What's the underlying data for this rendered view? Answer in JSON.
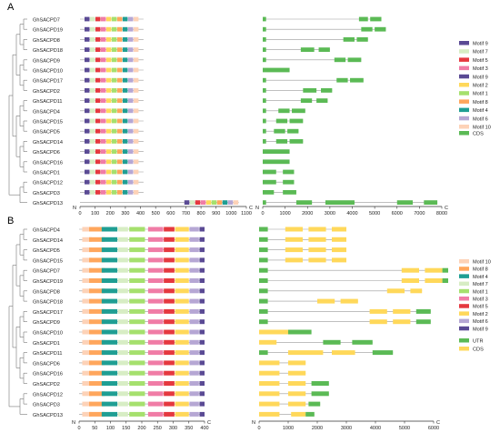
{
  "colors": {
    "Motif 1": "#a5e06d",
    "Motif 2": "#ffd85a",
    "Motif 3": "#f07ca6",
    "Motif 4": "#1f9e93",
    "Motif 5": "#e5383f",
    "Motif 6": "#b6a7d4",
    "Motif 7": "#d7edc4",
    "Motif 8": "#ffa65c",
    "Motif 9": "#5a4a94",
    "Motif 10": "#fdd2b7",
    "CDS_A": "#5bba55",
    "UTR": "#5bba55",
    "CDS_B": "#ffd85a"
  },
  "panelA": {
    "label": "A",
    "genes": [
      "GhSACPD7",
      "GhSACPD19",
      "GhSACPD8",
      "GhSACPD18",
      "GhSACPD9",
      "GhSACPD10",
      "GhSACPD17",
      "GhSACPD2",
      "GhSACPD11",
      "GhSACPD4",
      "GhSACPD15",
      "GhSACPD5",
      "GhSACPD14",
      "GhSACPD6",
      "GhSACPD16",
      "GhSACPD1",
      "GhSACPD12",
      "GhSACPD3",
      "GhSACPD13"
    ],
    "motif_axis": {
      "max": 1100,
      "ticks": [
        0,
        100,
        200,
        300,
        400,
        500,
        600,
        700,
        800,
        900,
        1000,
        1100
      ],
      "n_label": "N",
      "c_label": "C"
    },
    "gene_axis": {
      "max": 8000,
      "ticks": [
        0,
        1000,
        2000,
        3000,
        4000,
        5000,
        6000,
        7000,
        8000
      ],
      "n_label": "N",
      "c_label": "C"
    },
    "legend": [
      "Motif 9",
      "Motif 7",
      "Motif 5",
      "Motif 3",
      "Motif 9",
      "Motif 2",
      "Motif 1",
      "Motif 8",
      "Motif 4",
      "Motif 6",
      "Motif 10",
      "CDS"
    ]
  },
  "panelB": {
    "label": "B",
    "genes": [
      "GhSACPD4",
      "GhSACPD14",
      "GhSACPD5",
      "GhSACPD15",
      "GhSACPD7",
      "GhSACPD19",
      "GhSACPD8",
      "GhSACPD18",
      "GhSACPD17",
      "GhSACPD9",
      "GhSACPD10",
      "GhSACPD1",
      "GhSACPD11",
      "GhSACPD6",
      "GhSACPD16",
      "GhSACPD2",
      "GhSACPD12",
      "GhSACPD3",
      "GhSACPD13"
    ],
    "motif_axis": {
      "max": 400,
      "ticks": [
        0,
        50,
        100,
        150,
        200,
        250,
        300,
        350,
        400
      ],
      "n_label": "N",
      "c_label": "C"
    },
    "gene_axis": {
      "max": 6000,
      "ticks": [
        0,
        1000,
        2000,
        3000,
        4000,
        5000,
        6000
      ],
      "n_label": "N",
      "c_label": "C"
    },
    "legend": [
      "Motif 10",
      "Motif 8",
      "Motif 4",
      "Motif 7",
      "Motif 1",
      "Motif 3",
      "Motif 5",
      "Motif 2",
      "Motif 6",
      "Motif 9",
      "UTR",
      "CDS"
    ]
  }
}
